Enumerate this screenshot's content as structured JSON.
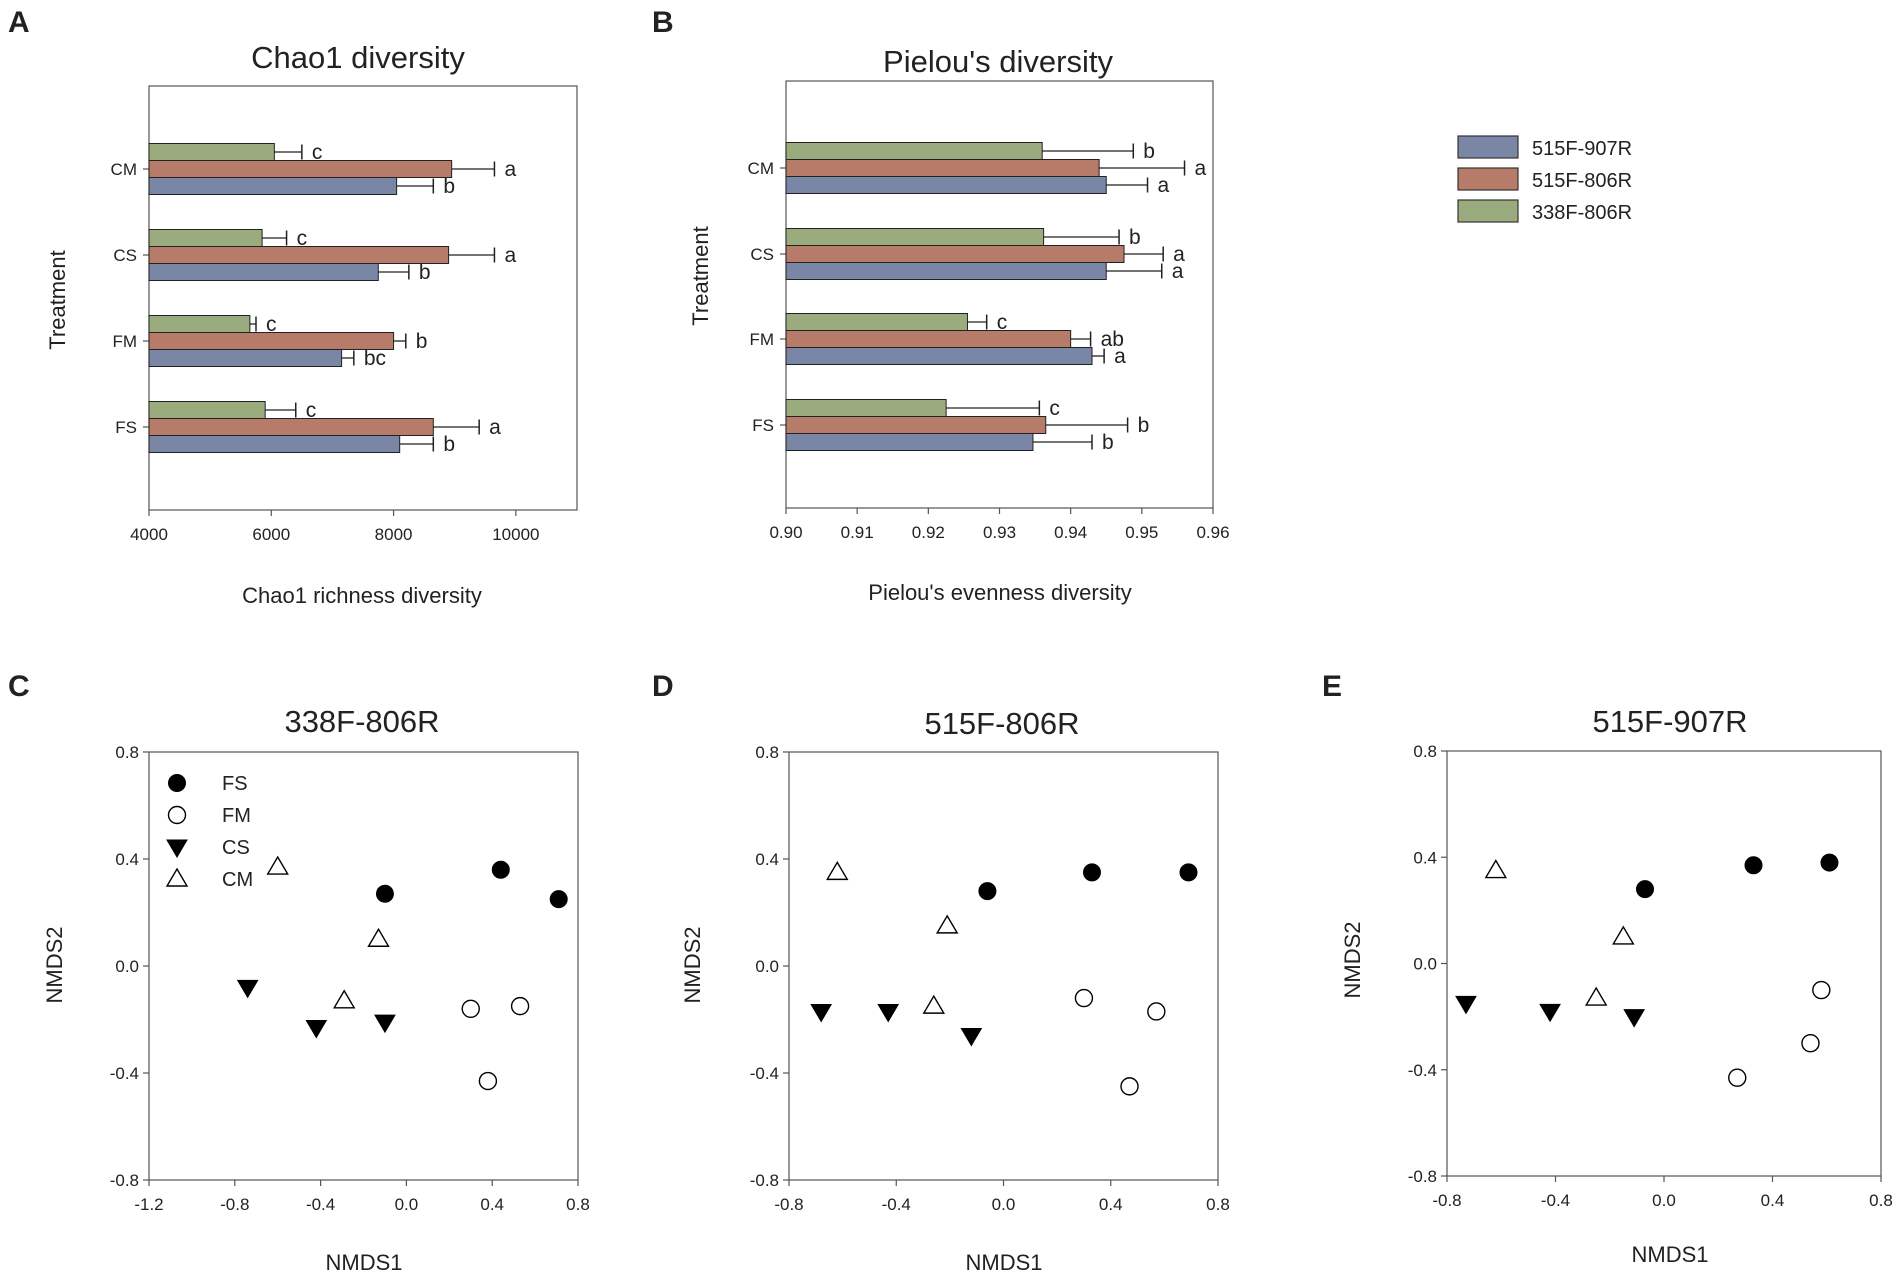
{
  "legend": {
    "entries": [
      {
        "label": "515F-907R",
        "color": "#7a86a6"
      },
      {
        "label": "515F-806R",
        "color": "#b77b69"
      },
      {
        "label": "338F-806R",
        "color": "#9aac7e"
      }
    ]
  },
  "chart_data": [
    {
      "panel": "A",
      "type": "bar",
      "orientation": "horizontal",
      "title": "Chao1 diversity",
      "xlabel": "Chao1 richness diversity",
      "ylabel": "Treatment",
      "xlim": [
        4000,
        11000
      ],
      "xticks": [
        4000,
        6000,
        8000,
        10000
      ],
      "categories": [
        "CM",
        "CS",
        "FM",
        "FS"
      ],
      "series": [
        {
          "name": "338F-806R",
          "color": "#9aac7e",
          "values": [
            6050,
            5850,
            5650,
            5900
          ],
          "errors": [
            450,
            400,
            100,
            500
          ],
          "letters": [
            "c",
            "c",
            "c",
            "c"
          ]
        },
        {
          "name": "515F-806R",
          "color": "#b77b69",
          "values": [
            8950,
            8900,
            8000,
            8650
          ],
          "errors": [
            700,
            750,
            200,
            750
          ],
          "letters": [
            "a",
            "a",
            "b",
            "a"
          ]
        },
        {
          "name": "515F-907R",
          "color": "#7a86a6",
          "values": [
            8050,
            7750,
            7150,
            8100
          ],
          "errors": [
            600,
            500,
            200,
            550
          ],
          "letters": [
            "b",
            "b",
            "bc",
            "b"
          ]
        }
      ]
    },
    {
      "panel": "B",
      "type": "bar",
      "orientation": "horizontal",
      "title": "Pielou's diversity",
      "xlabel": "Pielou's evenness diversity",
      "ylabel": "Treatment",
      "xlim": [
        0.9,
        0.96
      ],
      "xticks": [
        0.9,
        0.91,
        0.92,
        0.93,
        0.94,
        0.95,
        0.96
      ],
      "tick_labels": [
        "0.90",
        "0.91",
        "0.92",
        "0.93",
        "0.94",
        "0.95",
        "0.96"
      ],
      "categories": [
        "CM",
        "CS",
        "FM",
        "FS"
      ],
      "series": [
        {
          "name": "338F-806R",
          "color": "#9aac7e",
          "values": [
            0.936,
            0.9362,
            0.9255,
            0.9225
          ],
          "errors": [
            0.0128,
            0.0106,
            0.0027,
            0.0131
          ],
          "letters": [
            "b",
            "b",
            "c",
            "c"
          ]
        },
        {
          "name": "515F-806R",
          "color": "#b77b69",
          "values": [
            0.944,
            0.9475,
            0.94,
            0.9365
          ],
          "errors": [
            0.012,
            0.0055,
            0.0028,
            0.0115
          ],
          "letters": [
            "a",
            "a",
            "ab",
            "b"
          ]
        },
        {
          "name": "515F-907R",
          "color": "#7a86a6",
          "values": [
            0.945,
            0.945,
            0.943,
            0.9347
          ],
          "errors": [
            0.0058,
            0.0078,
            0.0017,
            0.0083
          ],
          "letters": [
            "a",
            "a",
            "a",
            "b"
          ]
        }
      ]
    },
    {
      "panel": "C",
      "type": "scatter",
      "title": "338F-806R",
      "xlabel": "NMDS1",
      "ylabel": "NMDS2",
      "xlim": [
        -1.2,
        0.8
      ],
      "ylim": [
        -0.8,
        0.8
      ],
      "xticks": [
        "-1.2",
        "-0.8",
        "-0.4",
        "0.0",
        "0.4",
        "0.8"
      ],
      "yticks": [
        "-0.8",
        "-0.4",
        "0.0",
        "0.4",
        "0.8"
      ],
      "legend": [
        {
          "label": "FS",
          "marker": "circle-filled"
        },
        {
          "label": "FM",
          "marker": "circle-open"
        },
        {
          "label": "CS",
          "marker": "triangle-down-filled"
        },
        {
          "label": "CM",
          "marker": "triangle-up-open"
        }
      ],
      "series": [
        {
          "name": "FS",
          "marker": "circle-filled",
          "points": [
            [
              -0.1,
              0.27
            ],
            [
              0.44,
              0.36
            ],
            [
              0.71,
              0.25
            ]
          ]
        },
        {
          "name": "FM",
          "marker": "circle-open",
          "points": [
            [
              0.3,
              -0.16
            ],
            [
              0.53,
              -0.15
            ],
            [
              0.38,
              -0.43
            ]
          ]
        },
        {
          "name": "CS",
          "marker": "triangle-down-filled",
          "points": [
            [
              -0.74,
              -0.08
            ],
            [
              -0.42,
              -0.23
            ],
            [
              -0.1,
              -0.21
            ]
          ]
        },
        {
          "name": "CM",
          "marker": "triangle-up-open",
          "points": [
            [
              -0.6,
              0.37
            ],
            [
              -0.13,
              0.1
            ],
            [
              -0.29,
              -0.13
            ]
          ]
        }
      ]
    },
    {
      "panel": "D",
      "type": "scatter",
      "title": "515F-806R",
      "xlabel": "NMDS1",
      "ylabel": "NMDS2",
      "xlim": [
        -0.8,
        0.8
      ],
      "ylim": [
        -0.8,
        0.8
      ],
      "xticks": [
        "-0.8",
        "-0.4",
        "0.0",
        "0.4",
        "0.8"
      ],
      "yticks": [
        "-0.8",
        "-0.4",
        "0.0",
        "0.4",
        "0.8"
      ],
      "series": [
        {
          "name": "FS",
          "marker": "circle-filled",
          "points": [
            [
              -0.06,
              0.28
            ],
            [
              0.33,
              0.35
            ],
            [
              0.69,
              0.35
            ]
          ]
        },
        {
          "name": "FM",
          "marker": "circle-open",
          "points": [
            [
              0.3,
              -0.12
            ],
            [
              0.57,
              -0.17
            ],
            [
              0.47,
              -0.45
            ]
          ]
        },
        {
          "name": "CS",
          "marker": "triangle-down-filled",
          "points": [
            [
              -0.68,
              -0.17
            ],
            [
              -0.43,
              -0.17
            ],
            [
              -0.12,
              -0.26
            ]
          ]
        },
        {
          "name": "CM",
          "marker": "triangle-up-open",
          "points": [
            [
              -0.62,
              0.35
            ],
            [
              -0.21,
              0.15
            ],
            [
              -0.26,
              -0.15
            ]
          ]
        }
      ]
    },
    {
      "panel": "E",
      "type": "scatter",
      "title": "515F-907R",
      "xlabel": "NMDS1",
      "ylabel": "NMDS2",
      "xlim": [
        -0.8,
        0.8
      ],
      "ylim": [
        -0.8,
        0.8
      ],
      "xticks": [
        "-0.8",
        "-0.4",
        "0.0",
        "0.4",
        "0.8"
      ],
      "yticks": [
        "-0.8",
        "-0.4",
        "0.0",
        "0.4",
        "0.8"
      ],
      "series": [
        {
          "name": "FS",
          "marker": "circle-filled",
          "points": [
            [
              -0.07,
              0.28
            ],
            [
              0.33,
              0.37
            ],
            [
              0.61,
              0.38
            ]
          ]
        },
        {
          "name": "FM",
          "marker": "circle-open",
          "points": [
            [
              0.58,
              -0.1
            ],
            [
              0.54,
              -0.3
            ],
            [
              0.27,
              -0.43
            ]
          ]
        },
        {
          "name": "CS",
          "marker": "triangle-down-filled",
          "points": [
            [
              -0.73,
              -0.15
            ],
            [
              -0.42,
              -0.18
            ],
            [
              -0.11,
              -0.2
            ]
          ]
        },
        {
          "name": "CM",
          "marker": "triangle-up-open",
          "points": [
            [
              -0.62,
              0.35
            ],
            [
              -0.15,
              0.1
            ],
            [
              -0.25,
              -0.13
            ]
          ]
        }
      ]
    }
  ]
}
